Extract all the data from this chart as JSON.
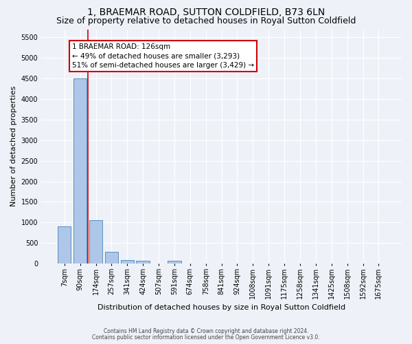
{
  "title": "1, BRAEMAR ROAD, SUTTON COLDFIELD, B73 6LN",
  "subtitle": "Size of property relative to detached houses in Royal Sutton Coldfield",
  "xlabel": "Distribution of detached houses by size in Royal Sutton Coldfield",
  "ylabel": "Number of detached properties",
  "footnote1": "Contains HM Land Registry data © Crown copyright and database right 2024.",
  "footnote2": "Contains public sector information licensed under the Open Government Licence v3.0.",
  "bar_categories": [
    "7sqm",
    "90sqm",
    "174sqm",
    "257sqm",
    "341sqm",
    "424sqm",
    "507sqm",
    "591sqm",
    "674sqm",
    "758sqm",
    "841sqm",
    "924sqm",
    "1008sqm",
    "1091sqm",
    "1175sqm",
    "1258sqm",
    "1341sqm",
    "1425sqm",
    "1508sqm",
    "1592sqm",
    "1675sqm"
  ],
  "bar_values": [
    900,
    4500,
    1050,
    280,
    90,
    70,
    0,
    70,
    0,
    0,
    0,
    0,
    0,
    0,
    0,
    0,
    0,
    0,
    0,
    0,
    0
  ],
  "bar_color": "#aec6e8",
  "bar_edge_color": "#5a8fc0",
  "property_line_x": 1.5,
  "property_line_color": "#cc0000",
  "annotation_text": "1 BRAEMAR ROAD: 126sqm\n← 49% of detached houses are smaller (3,293)\n51% of semi-detached houses are larger (3,429) →",
  "annotation_box_color": "#ffffff",
  "annotation_box_edge": "#cc0000",
  "ylim": [
    0,
    5700
  ],
  "yticks": [
    0,
    500,
    1000,
    1500,
    2000,
    2500,
    3000,
    3500,
    4000,
    4500,
    5000,
    5500
  ],
  "background_color": "#eef2f8",
  "axes_background": "#eef2f8",
  "grid_color": "#ffffff",
  "title_fontsize": 10,
  "subtitle_fontsize": 9,
  "label_fontsize": 8,
  "tick_fontsize": 7,
  "annotation_fontsize": 7.5
}
